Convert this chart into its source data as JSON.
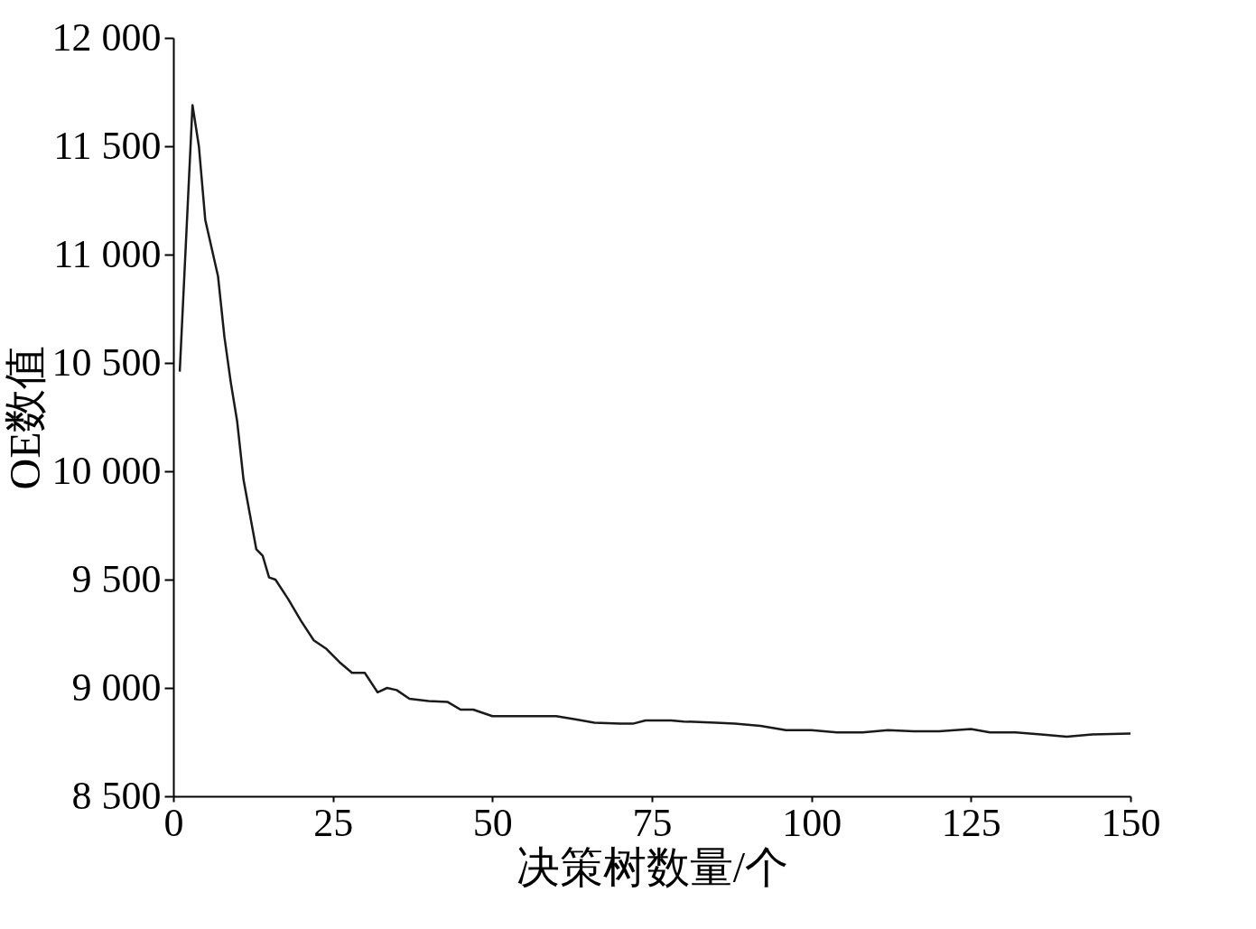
{
  "chart_data": {
    "type": "line",
    "xlabel": "决策树数量/个",
    "ylabel": "OE数值",
    "x": [
      1,
      3,
      4,
      5,
      7,
      8,
      9,
      10,
      11,
      12,
      13,
      14,
      15,
      16,
      18,
      20,
      22,
      24,
      26,
      28,
      30,
      32,
      33.5,
      35,
      37,
      40,
      43,
      45,
      47,
      50,
      55,
      60,
      63,
      66,
      70,
      72,
      74,
      78,
      80,
      85,
      88,
      92,
      96,
      100,
      104,
      108,
      112,
      116,
      120,
      125,
      128,
      132,
      136,
      140,
      144,
      150
    ],
    "series": [
      {
        "color": "#1a1a1a",
        "values": [
          10460,
          11690,
          11500,
          11160,
          10900,
          10620,
          10410,
          10230,
          9960,
          9800,
          9640,
          9610,
          9510,
          9500,
          9410,
          9310,
          9220,
          9180,
          9120,
          9070,
          9070,
          8980,
          9000,
          8990,
          8950,
          8940,
          8935,
          8900,
          8900,
          8870,
          8870,
          8870,
          8855,
          8840,
          8835,
          8835,
          8850,
          8850,
          8845,
          8840,
          8835,
          8825,
          8805,
          8805,
          8795,
          8795,
          8805,
          8800,
          8800,
          8810,
          8795,
          8795,
          8785,
          8775,
          8785,
          8790
        ]
      }
    ],
    "xlim": [
      0,
      150
    ],
    "xticks": [
      0,
      25,
      50,
      75,
      100,
      125,
      150
    ],
    "ylim": [
      8500,
      12000
    ],
    "yticks": [
      {
        "value": 8500,
        "label": "8 500"
      },
      {
        "value": 9000,
        "label": "9 000"
      },
      {
        "value": 9500,
        "label": "9 500"
      },
      {
        "value": 10000,
        "label": "10 000"
      },
      {
        "value": 10500,
        "label": "10 500"
      },
      {
        "value": 11000,
        "label": "11 000"
      },
      {
        "value": 11500,
        "label": "11 500"
      },
      {
        "value": 12000,
        "label": "12 000"
      }
    ],
    "grid": false,
    "marker": "none",
    "line_style": "solid"
  }
}
